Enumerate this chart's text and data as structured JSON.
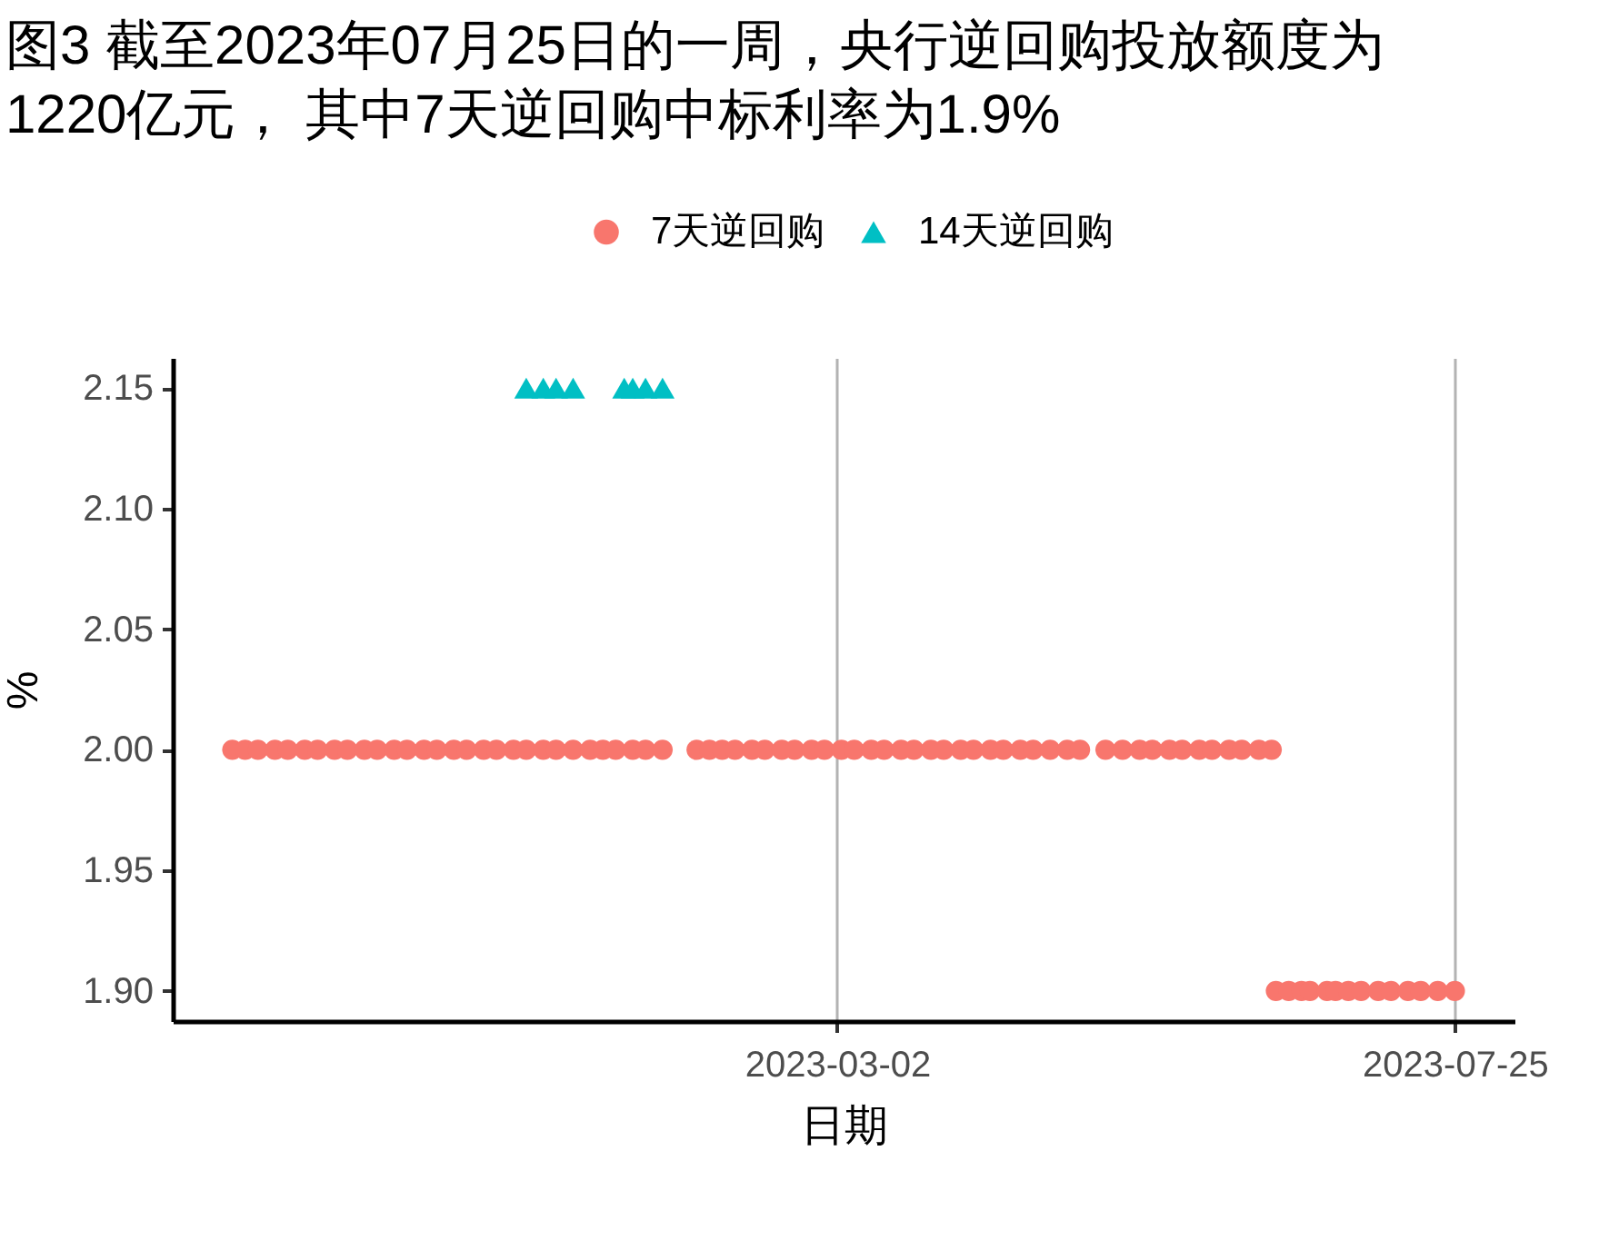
{
  "chart_data": {
    "type": "scatter",
    "title": "图3  截至2023年07月25日的一周，央行逆回购投放额度为\n1220亿元， 其中7天逆回购中标利率为1.9%",
    "xlabel": "日期",
    "ylabel": "%",
    "xlim": [
      "2022-09-27",
      "2023-08-08"
    ],
    "xticks": [
      "2023-03-02",
      "2023-07-25"
    ],
    "ylim": [
      1.8875,
      2.1625
    ],
    "yticks": [
      {
        "value": 1.9,
        "label": "1.90"
      },
      1.95,
      {
        "value": 2.0,
        "label": "2.00"
      },
      2.05,
      {
        "value": 2.1,
        "label": "2.10"
      },
      2.15
    ],
    "grid": "x",
    "legend": "top",
    "series": [
      {
        "name": "7天逆回购",
        "color": "#f8766d",
        "marker": "circle",
        "x": [
          "2022-10-11",
          "2022-10-14",
          "2022-10-17",
          "2022-10-21",
          "2022-10-24",
          "2022-10-28",
          "2022-10-31",
          "2022-11-04",
          "2022-11-07",
          "2022-11-11",
          "2022-11-14",
          "2022-11-18",
          "2022-11-21",
          "2022-11-25",
          "2022-11-28",
          "2022-12-02",
          "2022-12-05",
          "2022-12-09",
          "2022-12-12",
          "2022-12-16",
          "2022-12-19",
          "2022-12-23",
          "2022-12-26",
          "2022-12-30",
          "2023-01-03",
          "2023-01-06",
          "2023-01-09",
          "2023-01-13",
          "2023-01-16",
          "2023-01-20",
          "2023-01-28",
          "2023-01-31",
          "2023-02-03",
          "2023-02-06",
          "2023-02-10",
          "2023-02-13",
          "2023-02-17",
          "2023-02-20",
          "2023-02-24",
          "2023-02-27",
          "2023-03-03",
          "2023-03-06",
          "2023-03-10",
          "2023-03-13",
          "2023-03-17",
          "2023-03-20",
          "2023-03-24",
          "2023-03-27",
          "2023-03-31",
          "2023-04-03",
          "2023-04-07",
          "2023-04-10",
          "2023-04-14",
          "2023-04-17",
          "2023-04-21",
          "2023-04-25",
          "2023-04-28",
          "2023-05-04",
          "2023-05-08",
          "2023-05-12",
          "2023-05-15",
          "2023-05-19",
          "2023-05-22",
          "2023-05-26",
          "2023-05-29",
          "2023-06-02",
          "2023-06-05",
          "2023-06-09",
          "2023-06-12",
          "2023-06-13",
          "2023-06-16",
          "2023-06-19",
          "2023-06-21",
          "2023-06-25",
          "2023-06-27",
          "2023-06-30",
          "2023-07-03",
          "2023-07-07",
          "2023-07-10",
          "2023-07-14",
          "2023-07-17",
          "2023-07-21",
          "2023-07-25"
        ],
        "values": [
          2,
          2,
          2,
          2,
          2,
          2,
          2,
          2,
          2,
          2,
          2,
          2,
          2,
          2,
          2,
          2,
          2,
          2,
          2,
          2,
          2,
          2,
          2,
          2,
          2,
          2,
          2,
          2,
          2,
          2,
          2,
          2,
          2,
          2,
          2,
          2,
          2,
          2,
          2,
          2,
          2,
          2,
          2,
          2,
          2,
          2,
          2,
          2,
          2,
          2,
          2,
          2,
          2,
          2,
          2,
          2,
          2,
          2,
          2,
          2,
          2,
          2,
          2,
          2,
          2,
          2,
          2,
          2,
          2,
          1.9,
          1.9,
          1.9,
          1.9,
          1.9,
          1.9,
          1.9,
          1.9,
          1.9,
          1.9,
          1.9,
          1.9,
          1.9,
          1.9
        ]
      },
      {
        "name": "14天逆回购",
        "color": "#00bfc4",
        "marker": "triangle",
        "x": [
          "2022-12-19",
          "2022-12-23",
          "2022-12-26",
          "2022-12-30",
          "2023-01-11",
          "2023-01-13",
          "2023-01-16",
          "2023-01-20"
        ],
        "values": [
          2.15,
          2.15,
          2.15,
          2.15,
          2.15,
          2.15,
          2.15,
          2.15
        ]
      }
    ]
  }
}
